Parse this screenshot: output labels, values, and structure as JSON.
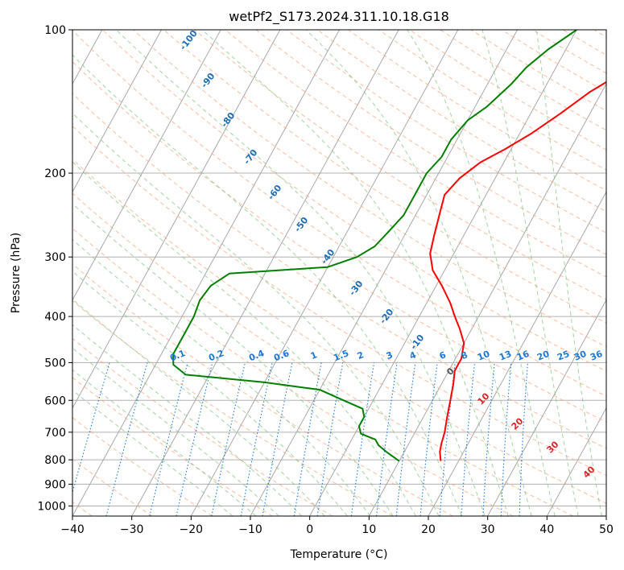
{
  "chart_data": {
    "type": "line",
    "subtype": "skew-T log-P diagram",
    "title": "wetPf2_S173.2024.311.10.18.G18",
    "xlabel": "Temperature (°C)",
    "ylabel": "Pressure (hPa)",
    "xlim": [
      -40,
      50
    ],
    "ylim": [
      1050,
      100
    ],
    "y_scale": "log",
    "grid": true,
    "x_ticks": [
      -40,
      -30,
      -20,
      -10,
      0,
      10,
      20,
      30,
      40,
      50
    ],
    "y_ticks": [
      100,
      200,
      300,
      400,
      500,
      600,
      700,
      800,
      900,
      1000
    ],
    "series": [
      {
        "color": "#ff0000",
        "points": [
          [
            17,
            805
          ],
          [
            16,
            770
          ],
          [
            15.5,
            740
          ],
          [
            15,
            700
          ],
          [
            14,
            650
          ],
          [
            13,
            600
          ],
          [
            12,
            555
          ],
          [
            11,
            520
          ],
          [
            11,
            490
          ],
          [
            10,
            455
          ],
          [
            8,
            425
          ],
          [
            6,
            400
          ],
          [
            4,
            375
          ],
          [
            1,
            345
          ],
          [
            -2,
            320
          ],
          [
            -4,
            295
          ],
          [
            -5,
            270
          ],
          [
            -6,
            245
          ],
          [
            -7,
            222
          ],
          [
            -6,
            205
          ],
          [
            -4,
            190
          ],
          [
            -1,
            178
          ],
          [
            2,
            165
          ],
          [
            5,
            150
          ],
          [
            8,
            135
          ],
          [
            11,
            125
          ],
          [
            13,
            115
          ],
          [
            15,
            107
          ],
          [
            18,
            100
          ]
        ]
      },
      {
        "color": "#008000",
        "points": [
          [
            10,
            805
          ],
          [
            7,
            770
          ],
          [
            5,
            745
          ],
          [
            4,
            725
          ],
          [
            1,
            705
          ],
          [
            0,
            680
          ],
          [
            0,
            650
          ],
          [
            -1,
            625
          ],
          [
            -5,
            600
          ],
          [
            -10,
            570
          ],
          [
            -20,
            550
          ],
          [
            -34,
            530
          ],
          [
            -37,
            505
          ],
          [
            -38,
            480
          ],
          [
            -38,
            440
          ],
          [
            -38,
            400
          ],
          [
            -38.5,
            370
          ],
          [
            -38,
            345
          ],
          [
            -36,
            325
          ],
          [
            -20,
            315
          ],
          [
            -16,
            300
          ],
          [
            -14,
            285
          ],
          [
            -13,
            265
          ],
          [
            -12,
            245
          ],
          [
            -12,
            225
          ],
          [
            -12,
            200
          ],
          [
            -11,
            185
          ],
          [
            -11,
            170
          ],
          [
            -10,
            155
          ],
          [
            -8,
            145
          ],
          [
            -6,
            130
          ],
          [
            -5,
            120
          ],
          [
            -3,
            110
          ],
          [
            0,
            100
          ]
        ]
      }
    ],
    "dry_adiabat_labels": [
      "-100",
      "-90",
      "-80",
      "-70",
      "-60",
      "-50",
      "-40",
      "-30",
      "-20",
      "-10"
    ],
    "mixing_ratio_labels": [
      "0.1",
      "0.2",
      "0.4",
      "0.6",
      "1",
      "1.5",
      "2",
      "3",
      "4",
      "6",
      "8",
      "10",
      "13",
      "16",
      "20",
      "25",
      "30",
      "36"
    ],
    "moist_adiabat_labels": [
      "0",
      "10",
      "20",
      "30",
      "40"
    ],
    "colors": {
      "temperature": "#ff0000",
      "dewpoint": "#008000",
      "isotherm": "#808080",
      "dry_adiabat": "#f4a582",
      "moist_adiabat": "#7fbf7f",
      "mixing_ratio": "#1f78d1",
      "dry_label": "#1f6fb0",
      "moist_label_warm": "#d62728",
      "moist_label_zero": "#555555"
    }
  }
}
